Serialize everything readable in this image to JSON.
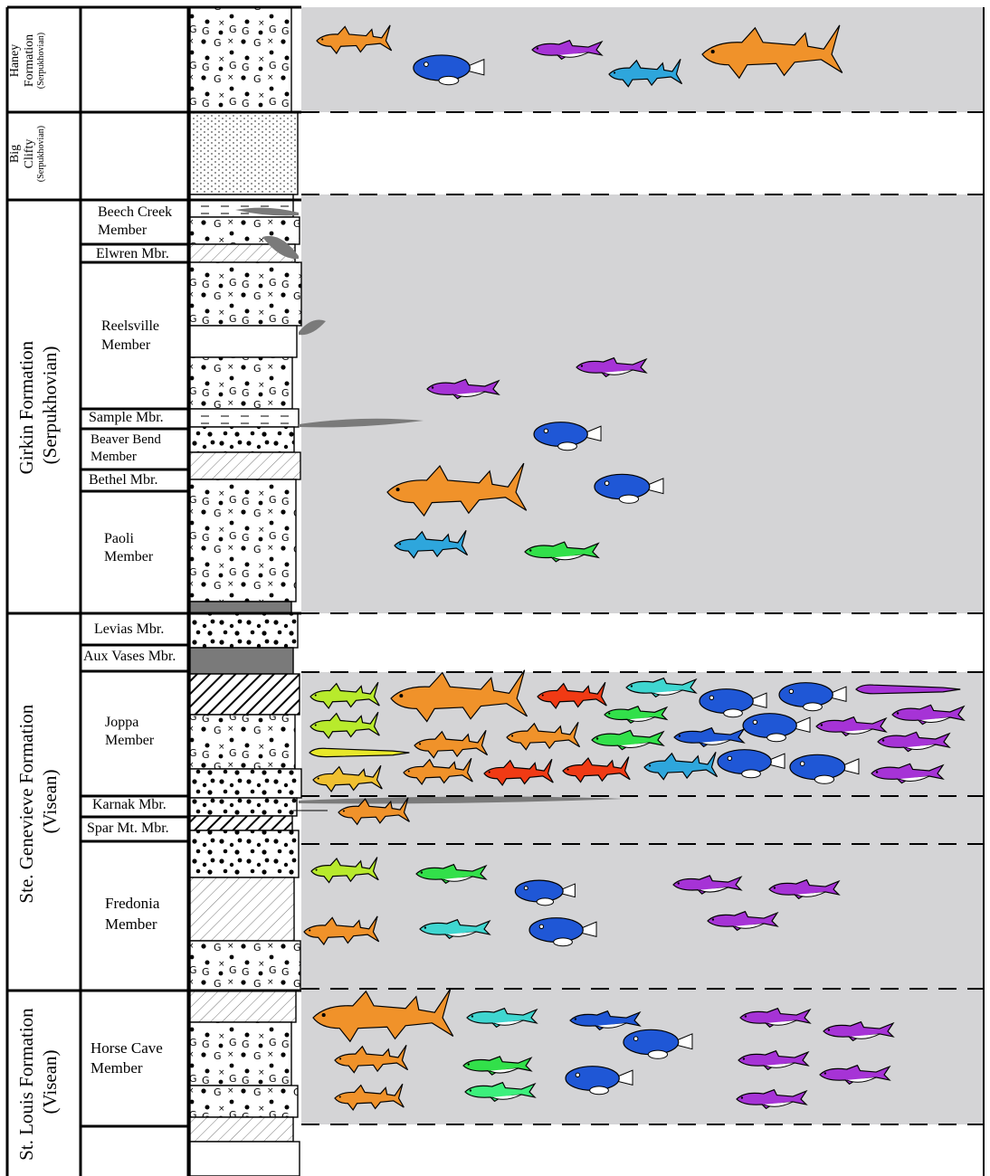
{
  "formations": [
    {
      "id": "haney",
      "lines": [
        "Haney",
        "Formation"
      ],
      "stage": "(Serpukhovian)"
    },
    {
      "id": "big-clifty",
      "lines": [
        "Big",
        "Clifty"
      ],
      "stage": "(Serpukhovian)"
    },
    {
      "id": "girkin",
      "lines": [
        "Girkin Formation",
        "(Serpukhovian)"
      ]
    },
    {
      "id": "ste-genevieve",
      "lines": [
        "Ste. Genevieve Formation",
        "(Visean)"
      ]
    },
    {
      "id": "st-louis",
      "lines": [
        "St. Louis Formation",
        "(Visean)"
      ]
    }
  ],
  "members": [
    {
      "id": "beech-creek",
      "lines": [
        "Beech Creek",
        "Member"
      ]
    },
    {
      "id": "elwren",
      "lines": [
        "Elwren Mbr."
      ]
    },
    {
      "id": "reelsville",
      "lines": [
        "Reelsville",
        "Member"
      ]
    },
    {
      "id": "sample",
      "lines": [
        "Sample Mbr."
      ]
    },
    {
      "id": "beaver-bend",
      "lines": [
        "Beaver Bend",
        "Member"
      ]
    },
    {
      "id": "bethel",
      "lines": [
        "Bethel Mbr."
      ]
    },
    {
      "id": "paoli",
      "lines": [
        "Paoli",
        "Member"
      ]
    },
    {
      "id": "levias",
      "lines": [
        "Levias Mbr."
      ]
    },
    {
      "id": "aux-vases",
      "lines": [
        "Aux Vases Mbr."
      ]
    },
    {
      "id": "joppa",
      "lines": [
        "Joppa",
        "Member"
      ]
    },
    {
      "id": "karnak",
      "lines": [
        "Karnak Mbr."
      ]
    },
    {
      "id": "spar-mt",
      "lines": [
        "Spar Mt. Mbr."
      ]
    },
    {
      "id": "fredonia",
      "lines": [
        "Fredonia",
        "Member"
      ]
    },
    {
      "id": "horse-cave",
      "lines": [
        "Horse Cave",
        "Member"
      ]
    }
  ],
  "colors": {
    "band_gray": "#d4d4d6",
    "orange": "#f0922a",
    "blue": "#1f57d6",
    "purple": "#a633d6",
    "cyan": "#2ea6dc",
    "green": "#32e04a",
    "lime": "#b8ea2c",
    "yellow": "#e8e82a",
    "gold": "#f0c030",
    "red": "#f03a14",
    "teal": "#3fd6d0",
    "lightgreen": "#3cf07c",
    "dark": "#7a7a7a"
  },
  "fossil_groups": [
    {
      "band": "haney",
      "taxa": [
        {
          "shape": "shark",
          "color": "orange",
          "count": 2
        },
        {
          "shape": "rounded",
          "color": "blue",
          "count": 1
        },
        {
          "shape": "slender",
          "color": "purple",
          "count": 1
        },
        {
          "shape": "shark",
          "color": "cyan",
          "count": 1
        }
      ]
    },
    {
      "band": "girkin",
      "taxa": [
        {
          "shape": "slender",
          "color": "purple",
          "count": 2
        },
        {
          "shape": "rounded",
          "color": "blue",
          "count": 2
        },
        {
          "shape": "shark",
          "color": "orange",
          "count": 1
        },
        {
          "shape": "shark",
          "color": "cyan",
          "count": 1
        },
        {
          "shape": "slender",
          "color": "green",
          "count": 1
        }
      ]
    },
    {
      "band": "joppa-karnak",
      "taxa": [
        {
          "shape": "shark",
          "color": "lime",
          "count": 2
        },
        {
          "shape": "eel",
          "color": "yellow",
          "count": 1
        },
        {
          "shape": "shark",
          "color": "gold",
          "count": 1
        },
        {
          "shape": "shark",
          "color": "orange",
          "count": 4
        },
        {
          "shape": "shark",
          "color": "red",
          "count": 4
        },
        {
          "shape": "slender",
          "color": "teal",
          "count": 1
        },
        {
          "shape": "slender",
          "color": "green",
          "count": 2
        },
        {
          "shape": "shark",
          "color": "cyan",
          "count": 1
        },
        {
          "shape": "rounded",
          "color": "blue",
          "count": 7
        },
        {
          "shape": "slender",
          "color": "purple",
          "count": 6
        }
      ]
    },
    {
      "band": "fredonia",
      "taxa": [
        {
          "shape": "shark",
          "color": "lime",
          "count": 1
        },
        {
          "shape": "slender",
          "color": "green",
          "count": 1
        },
        {
          "shape": "rounded",
          "color": "blue",
          "count": 2
        },
        {
          "shape": "slender",
          "color": "purple",
          "count": 3
        },
        {
          "shape": "shark",
          "color": "orange",
          "count": 1
        },
        {
          "shape": "slender",
          "color": "teal",
          "count": 1
        }
      ]
    },
    {
      "band": "horse-cave",
      "taxa": [
        {
          "shape": "shark",
          "color": "orange",
          "count": 3
        },
        {
          "shape": "slender",
          "color": "teal",
          "count": 1
        },
        {
          "shape": "slender",
          "color": "green",
          "count": 2
        },
        {
          "shape": "rounded",
          "color": "blue",
          "count": 3
        },
        {
          "shape": "slender",
          "color": "purple",
          "count": 5
        }
      ]
    }
  ]
}
